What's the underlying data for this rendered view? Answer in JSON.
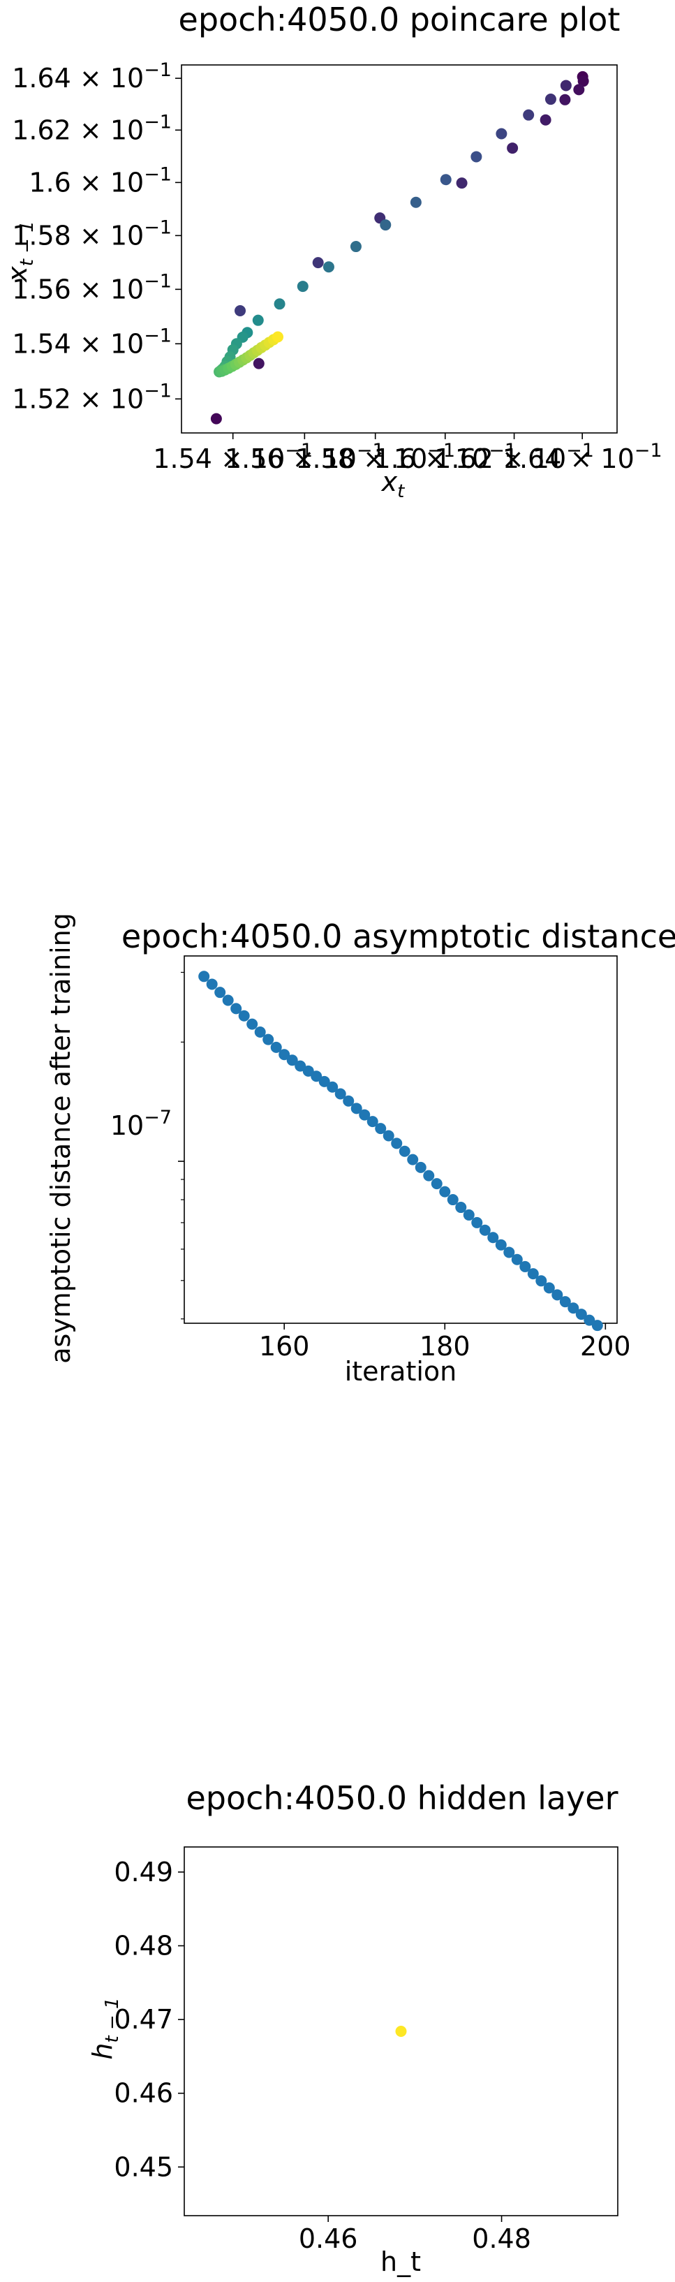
{
  "charts": [
    {
      "title": "epoch:4050.0 poincare plot",
      "xlabel_base": "x",
      "xlabel_sub": "t",
      "ylabel_base": "x",
      "ylabel_sub": "t − 1",
      "y_ticks": [
        "1.52 × 10",
        "1.54 × 10",
        "1.56 × 10",
        "1.58 × 10",
        "1.6 × 10",
        "1.62 × 10",
        "1.64 × 10"
      ],
      "x_ticks": [
        "1.54 × 10",
        "1.56 × 10",
        "1.58 × 10",
        "1.6 × 10",
        "1.62 × 10",
        "1.64 × 10"
      ],
      "exponent": "−1"
    },
    {
      "title": "epoch:4050.0 asymptotic distance",
      "xlabel": "iteration",
      "ylabel": "asymptotic distance after training",
      "x_ticks": [
        "160",
        "180",
        "200"
      ],
      "y_tick_base": "10",
      "y_tick_exp": "−7"
    },
    {
      "title": "epoch:4050.0 hidden layer",
      "xlabel": "h_t",
      "ylabel_base": "h",
      "ylabel_sub": "t − 1",
      "x_ticks": [
        "0.46",
        "0.48"
      ],
      "y_ticks": [
        "0.45",
        "0.46",
        "0.47",
        "0.48",
        "0.49"
      ]
    }
  ],
  "chart_data": [
    {
      "type": "scatter",
      "title": "epoch:4050.0 poincare plot",
      "x_scale": "log",
      "y_scale": "log",
      "xlim": [
        0.15258,
        0.16503
      ],
      "ylim": [
        0.15078,
        0.16452
      ],
      "colormap": "viridis",
      "color_encodes": "iteration order",
      "points": [
        {
          "x": 0.16401,
          "y": 0.16406,
          "c": 0.0
        },
        {
          "x": 0.16403,
          "y": 0.16389,
          "c": 0.02
        },
        {
          "x": 0.1639,
          "y": 0.16356,
          "c": 0.04
        },
        {
          "x": 0.16349,
          "y": 0.16317,
          "c": 0.06
        },
        {
          "x": 0.16292,
          "y": 0.16239,
          "c": 0.08
        },
        {
          "x": 0.16195,
          "y": 0.16131,
          "c": 0.1
        },
        {
          "x": 0.16048,
          "y": 0.15998,
          "c": 0.12
        },
        {
          "x": 0.15813,
          "y": 0.15866,
          "c": 0.14
        },
        {
          "x": 0.15638,
          "y": 0.15699,
          "c": 0.16
        },
        {
          "x": 0.1542,
          "y": 0.15521,
          "c": 0.18
        },
        {
          "x": 0.15354,
          "y": 0.15129,
          "c": 0.02
        },
        {
          "x": 0.15472,
          "y": 0.15328,
          "c": 0.06
        },
        {
          "x": 0.16352,
          "y": 0.16372,
          "c": 0.12
        },
        {
          "x": 0.16307,
          "y": 0.16319,
          "c": 0.15
        },
        {
          "x": 0.16242,
          "y": 0.16258,
          "c": 0.18
        },
        {
          "x": 0.16163,
          "y": 0.16186,
          "c": 0.21
        },
        {
          "x": 0.1609,
          "y": 0.16098,
          "c": 0.24
        },
        {
          "x": 0.16002,
          "y": 0.16011,
          "c": 0.27
        },
        {
          "x": 0.15916,
          "y": 0.15925,
          "c": 0.3
        },
        {
          "x": 0.15829,
          "y": 0.1584,
          "c": 0.33
        },
        {
          "x": 0.15745,
          "y": 0.15759,
          "c": 0.36
        },
        {
          "x": 0.15668,
          "y": 0.15683,
          "c": 0.39
        },
        {
          "x": 0.15595,
          "y": 0.15611,
          "c": 0.42
        },
        {
          "x": 0.1553,
          "y": 0.15546,
          "c": 0.45
        },
        {
          "x": 0.1547,
          "y": 0.15486,
          "c": 0.48
        },
        {
          "x": 0.1544,
          "y": 0.15441,
          "c": 0.5
        },
        {
          "x": 0.15427,
          "y": 0.15424,
          "c": 0.52
        },
        {
          "x": 0.1541,
          "y": 0.154,
          "c": 0.54
        },
        {
          "x": 0.154,
          "y": 0.15378,
          "c": 0.56
        },
        {
          "x": 0.15392,
          "y": 0.15352,
          "c": 0.58
        },
        {
          "x": 0.15384,
          "y": 0.15335,
          "c": 0.6
        },
        {
          "x": 0.15378,
          "y": 0.15318,
          "c": 0.62
        },
        {
          "x": 0.15371,
          "y": 0.15308,
          "c": 0.64
        },
        {
          "x": 0.15366,
          "y": 0.15302,
          "c": 0.66
        },
        {
          "x": 0.15362,
          "y": 0.15298,
          "c": 0.68
        },
        {
          "x": 0.15369,
          "y": 0.153,
          "c": 0.7
        },
        {
          "x": 0.15378,
          "y": 0.15305,
          "c": 0.72
        },
        {
          "x": 0.15388,
          "y": 0.15311,
          "c": 0.74
        },
        {
          "x": 0.15398,
          "y": 0.15318,
          "c": 0.76
        },
        {
          "x": 0.15408,
          "y": 0.15325,
          "c": 0.78
        },
        {
          "x": 0.15418,
          "y": 0.15333,
          "c": 0.8
        },
        {
          "x": 0.15428,
          "y": 0.15341,
          "c": 0.82
        },
        {
          "x": 0.15438,
          "y": 0.15349,
          "c": 0.84
        },
        {
          "x": 0.15448,
          "y": 0.15358,
          "c": 0.86
        },
        {
          "x": 0.15458,
          "y": 0.15367,
          "c": 0.88
        },
        {
          "x": 0.15468,
          "y": 0.15376,
          "c": 0.9
        },
        {
          "x": 0.15479,
          "y": 0.15386,
          "c": 0.92
        },
        {
          "x": 0.1549,
          "y": 0.15395,
          "c": 0.94
        },
        {
          "x": 0.15501,
          "y": 0.15405,
          "c": 0.96
        },
        {
          "x": 0.15513,
          "y": 0.15415,
          "c": 0.98
        },
        {
          "x": 0.15525,
          "y": 0.15425,
          "c": 1.0
        }
      ]
    },
    {
      "type": "scatter",
      "title": "epoch:4050.0 asymptotic distance",
      "xlabel": "iteration",
      "ylabel": "asymptotic distance after training",
      "y_scale": "log",
      "xlim": [
        147.55,
        201.45
      ],
      "ylim": [
        3.9e-08,
        3.3e-07
      ],
      "color": "#1f77b4",
      "x": [
        150,
        151,
        152,
        153,
        154,
        155,
        156,
        157,
        158,
        159,
        160,
        161,
        162,
        163,
        164,
        165,
        166,
        167,
        168,
        169,
        170,
        171,
        172,
        173,
        174,
        175,
        176,
        177,
        178,
        179,
        180,
        181,
        182,
        183,
        184,
        185,
        186,
        187,
        188,
        189,
        190,
        191,
        192,
        193,
        194,
        195,
        196,
        197,
        198,
        199
      ],
      "y": [
        2.93e-07,
        2.8e-07,
        2.67e-07,
        2.55e-07,
        2.43e-07,
        2.33e-07,
        2.22e-07,
        2.12e-07,
        2.03e-07,
        1.94e-07,
        1.86e-07,
        1.8e-07,
        1.74e-07,
        1.69e-07,
        1.64e-07,
        1.59e-07,
        1.54e-07,
        1.48e-07,
        1.42e-07,
        1.36e-07,
        1.31e-07,
        1.26e-07,
        1.21e-07,
        1.16e-07,
        1.11e-07,
        1.06e-07,
        1.01e-07,
        9.65e-08,
        9.2e-08,
        8.78e-08,
        8.38e-08,
        8e-08,
        7.65e-08,
        7.32e-08,
        7e-08,
        6.7e-08,
        6.42e-08,
        6.15e-08,
        5.89e-08,
        5.65e-08,
        5.42e-08,
        5.2e-08,
        4.99e-08,
        4.79e-08,
        4.6e-08,
        4.42e-08,
        4.26e-08,
        4.11e-08,
        3.97e-08,
        3.85e-08
      ]
    },
    {
      "type": "scatter",
      "title": "epoch:4050.0 hidden layer",
      "xlabel": "h_t",
      "xlim": [
        0.4434,
        0.4934
      ],
      "ylim": [
        0.4434,
        0.4934
      ],
      "color": "#fde725",
      "points": [
        {
          "x": 0.4684,
          "y": 0.4684
        }
      ]
    }
  ]
}
